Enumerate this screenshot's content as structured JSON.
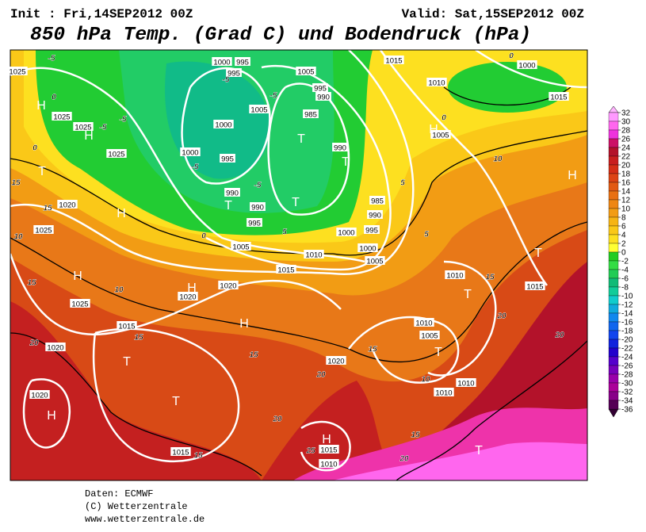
{
  "header": {
    "init": "Init : Fri,14SEP2012 00Z",
    "valid": "Valid: Sat,15SEP2012 00Z",
    "title": "850 hPa Temp. (Grad C) und Bodendruck (hPa)"
  },
  "colorbar": {
    "levels": [
      32,
      30,
      28,
      26,
      24,
      22,
      20,
      18,
      16,
      14,
      12,
      10,
      8,
      6,
      4,
      2,
      0,
      -2,
      -4,
      -6,
      -8,
      -10,
      -12,
      -14,
      -16,
      -18,
      -20,
      -22,
      -24,
      -26,
      -28,
      -30,
      -32,
      -34,
      -36
    ],
    "colors": [
      "#ff99ff",
      "#ff66ee",
      "#ee33dd",
      "#cc1166",
      "#b3122a",
      "#c81e1e",
      "#d42e16",
      "#dd4414",
      "#e25a12",
      "#e87012",
      "#ee8614",
      "#f29c14",
      "#f6b414",
      "#fac818",
      "#fde020",
      "#ffff33",
      "#22cc22",
      "#33dd44",
      "#22cc55",
      "#11bb77",
      "#11cc99",
      "#11cccc",
      "#11aadd",
      "#1188ee",
      "#1166ee",
      "#1144ee",
      "#1122dd",
      "#2200cc",
      "#5500cc",
      "#7700bb",
      "#9900aa",
      "#aa0099",
      "#880088",
      "#550055"
    ]
  },
  "map": {
    "isobar_labels": [
      1025,
      1025,
      1025,
      1025,
      1000,
      995,
      995,
      1005,
      995,
      990,
      1005,
      985,
      1000,
      1000,
      995,
      990,
      990,
      990,
      995,
      985,
      990,
      995,
      1000,
      1000,
      1005,
      1005,
      1010,
      1015,
      1020,
      1020,
      1025,
      1015,
      1020,
      1020,
      1010,
      1005,
      1010,
      1010,
      1015,
      1010,
      1015,
      1010,
      1005,
      1000,
      1015,
      1020,
      1015,
      1015,
      1010,
      1020,
      1025
    ],
    "isotherm_labels": [
      -5,
      0,
      -5,
      -5,
      0,
      15,
      15,
      10,
      15,
      10,
      20,
      15,
      15,
      20,
      20,
      15,
      25,
      20,
      15,
      15,
      10,
      20,
      20,
      15,
      10,
      0,
      0,
      5,
      5,
      -5,
      -5,
      5,
      0,
      -5,
      -5
    ],
    "pressure_centers": [
      "H",
      "H",
      "T",
      "H",
      "H",
      "H",
      "H",
      "T",
      "T",
      "H",
      "T",
      "T",
      "T",
      "T",
      "H",
      "H",
      "T",
      "T",
      "T",
      "H",
      "T"
    ]
  },
  "footer": {
    "source": "Daten: ECMWF",
    "copyright": "(C) Wetterzentrale",
    "url": "www.wetterzentrale.de"
  }
}
